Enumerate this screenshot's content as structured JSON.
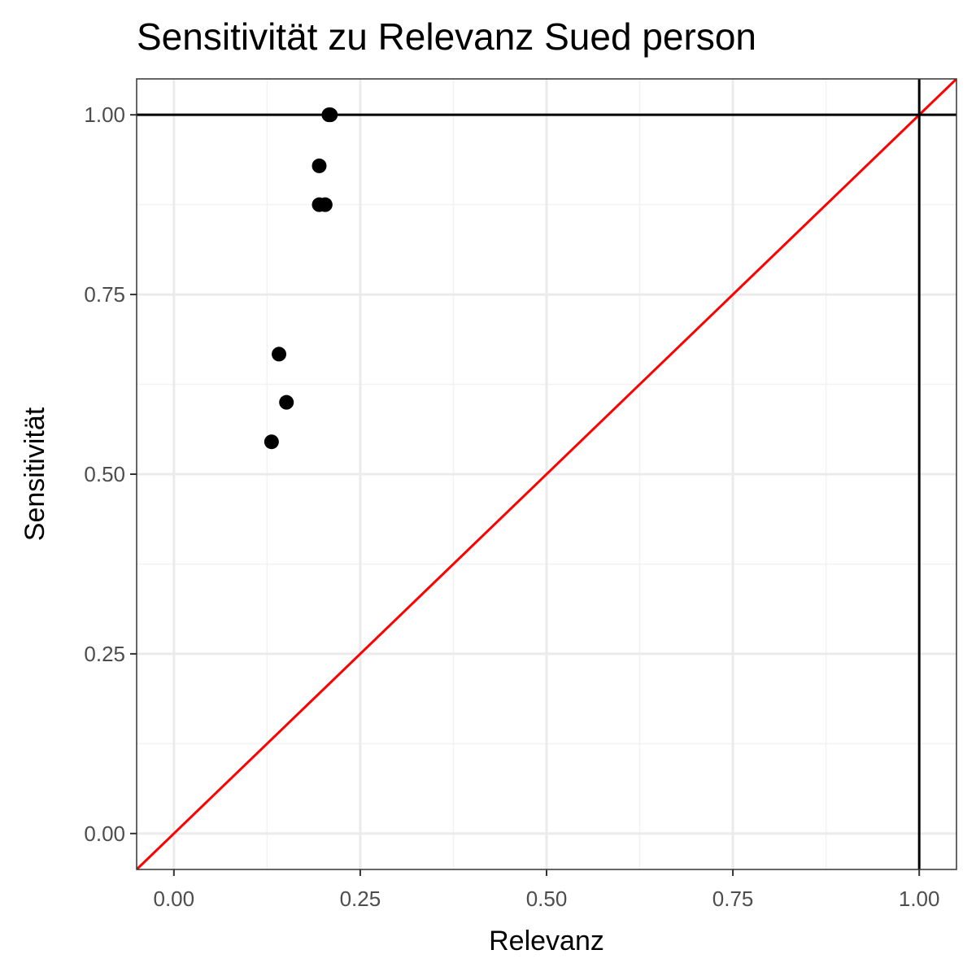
{
  "chart_data": {
    "type": "scatter",
    "title": "Sensitivität zu Relevanz Sued person",
    "xlabel": "Relevanz",
    "ylabel": "Sensitivität",
    "xlim": [
      -0.05,
      1.05
    ],
    "ylim": [
      -0.05,
      1.05
    ],
    "x_ticks": [
      0,
      0.25,
      0.5,
      0.75,
      1
    ],
    "x_tick_labels": [
      "0.00",
      "0.25",
      "0.50",
      "0.75",
      "1.00"
    ],
    "y_ticks": [
      0,
      0.25,
      0.5,
      0.75,
      1
    ],
    "y_tick_labels": [
      "0.00",
      "0.25",
      "0.50",
      "0.75",
      "1.00"
    ],
    "grid": true,
    "points": [
      {
        "x": 0.21,
        "y": 1.0
      },
      {
        "x": 0.208,
        "y": 1.0
      },
      {
        "x": 0.195,
        "y": 0.929
      },
      {
        "x": 0.195,
        "y": 0.875
      },
      {
        "x": 0.203,
        "y": 0.875
      },
      {
        "x": 0.141,
        "y": 0.667
      },
      {
        "x": 0.151,
        "y": 0.6
      },
      {
        "x": 0.131,
        "y": 0.545
      }
    ],
    "reference_lines": {
      "horizontal_y": 1.0,
      "vertical_x": 1.0,
      "diagonal": {
        "slope": 1,
        "intercept": 0
      }
    },
    "colors": {
      "points": "#000000",
      "reference": "#000000",
      "diagonal": "#ff0000",
      "grid_major": "#ebebeb",
      "grid_minor": "#f2f2f2",
      "panel_border": "#333333"
    }
  }
}
